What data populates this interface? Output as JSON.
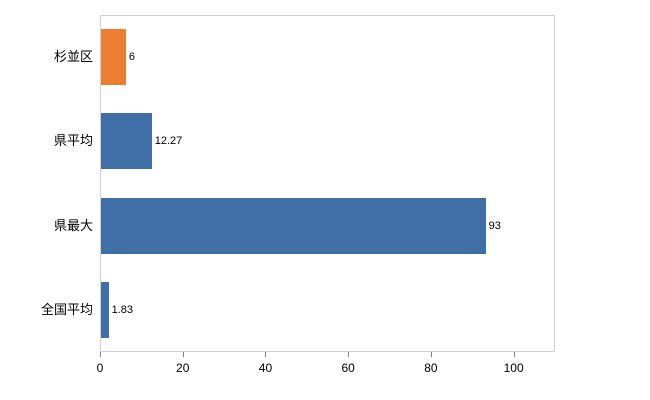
{
  "chart_data": {
    "type": "bar",
    "orientation": "horizontal",
    "title": "",
    "xlabel": "",
    "ylabel": "",
    "categories": [
      "杉並区",
      "県平均",
      "県最大",
      "全国平均"
    ],
    "values": [
      6,
      12.27,
      93,
      1.83
    ],
    "value_labels": [
      "6",
      "12.27",
      "93",
      "1.83"
    ],
    "bar_colors": [
      "#ed7d31",
      "#3f6fa6",
      "#3f6fa6",
      "#3f6fa6"
    ],
    "xlim": [
      0,
      110
    ],
    "x_ticks": [
      0,
      20,
      40,
      60,
      80,
      100
    ],
    "grid": false,
    "legend": "none",
    "plot_border_color": "#d0d0d0"
  }
}
